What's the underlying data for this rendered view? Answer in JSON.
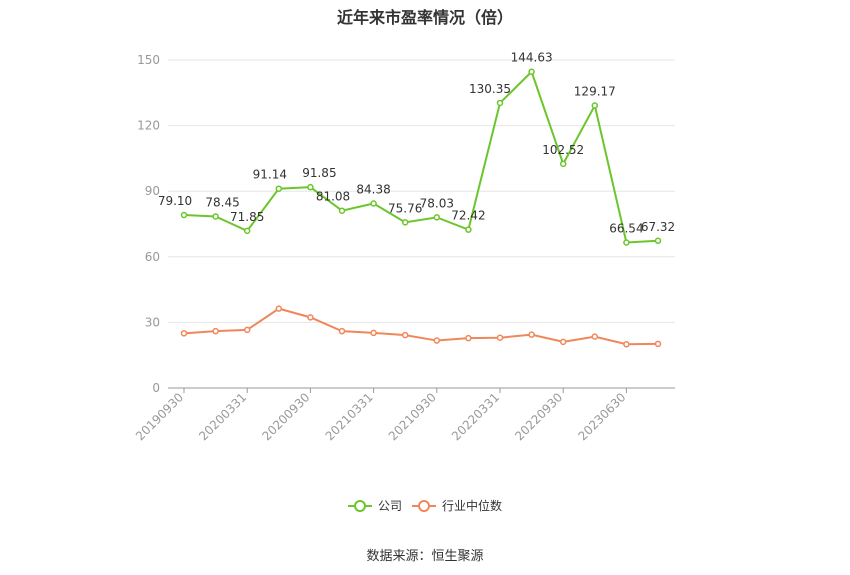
{
  "title": "近年来市盈率情况（倍）",
  "source": "数据来源：恒生聚源",
  "colors": {
    "company": "#6cc52a",
    "industry": "#f0875a",
    "grid": "#e6e6e6",
    "axis": "#999999"
  },
  "chart_data": {
    "type": "line",
    "ylim": [
      0,
      150
    ],
    "yticks": [
      0,
      30,
      60,
      90,
      120,
      150
    ],
    "x_tick_labels": [
      "20190930",
      "20200331",
      "20200930",
      "20210331",
      "20210930",
      "20220331",
      "20220930",
      "20230630"
    ],
    "legend_position": "bottom-center",
    "series": [
      {
        "name": "公司",
        "values": [
          79.1,
          78.45,
          71.85,
          91.14,
          91.85,
          81.08,
          84.38,
          75.76,
          78.03,
          72.42,
          130.35,
          144.63,
          102.52,
          129.17,
          66.54,
          67.32
        ],
        "labels": [
          "79.10",
          "78.45",
          "71.85",
          "91.14",
          "91.85",
          "81.08",
          "84.38",
          "75.76",
          "78.03",
          "72.42",
          "130.35",
          "144.63",
          "102.52",
          "129.17",
          "66.54",
          "67.32"
        ]
      },
      {
        "name": "行业中位数",
        "values": [
          25.0,
          26.0,
          26.6,
          36.3,
          32.3,
          26.0,
          25.2,
          24.2,
          21.7,
          22.8,
          23.0,
          24.4,
          21.1,
          23.5,
          20.0,
          20.2
        ]
      }
    ]
  }
}
